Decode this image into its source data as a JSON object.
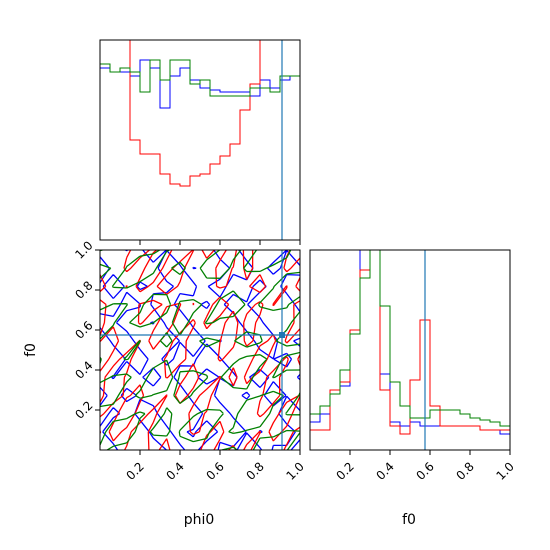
{
  "chart_data": {
    "type": "corner",
    "parameters": [
      "phi0",
      "f0"
    ],
    "axis_range": [
      0,
      1
    ],
    "ticks": [
      "0.2",
      "0.4",
      "0.6",
      "0.8",
      "1.0"
    ],
    "truth": {
      "phi0": 0.91,
      "f0": 0.575,
      "color": "#1f77b4"
    },
    "series": [
      {
        "color": "#0000ff"
      },
      {
        "color": "#ff0000"
      },
      {
        "color": "#008000"
      }
    ],
    "hist_phi0": {
      "bins": [
        0.0,
        0.05,
        0.1,
        0.15,
        0.2,
        0.25,
        0.3,
        0.35,
        0.4,
        0.45,
        0.5,
        0.55,
        0.6,
        0.65,
        0.7,
        0.75,
        0.8,
        0.85,
        0.9,
        0.95,
        1.0
      ],
      "blue": [
        0.86,
        0.84,
        0.84,
        0.82,
        0.9,
        0.86,
        0.66,
        0.82,
        0.86,
        0.8,
        0.76,
        0.75,
        0.74,
        0.74,
        0.74,
        0.72,
        0.8,
        0.76,
        0.8,
        0.82
      ],
      "red": [
        1.05,
        1.05,
        1.05,
        0.5,
        0.43,
        0.43,
        0.33,
        0.28,
        0.27,
        0.32,
        0.33,
        0.38,
        0.42,
        0.48,
        0.65,
        0.78,
        1.05,
        1.05,
        1.05,
        1.05
      ],
      "green": [
        0.88,
        0.84,
        0.86,
        0.84,
        0.74,
        0.9,
        0.8,
        0.9,
        0.9,
        0.78,
        0.8,
        0.72,
        0.72,
        0.72,
        0.72,
        0.76,
        0.76,
        0.74,
        0.82,
        0.82
      ]
    },
    "hist_f0": {
      "bins": [
        0.0,
        0.05,
        0.1,
        0.15,
        0.2,
        0.25,
        0.3,
        0.35,
        0.4,
        0.45,
        0.5,
        0.55,
        0.6,
        0.65,
        0.7,
        0.75,
        0.8,
        0.85,
        0.9,
        0.95,
        1.0
      ],
      "blue": [
        0.14,
        0.18,
        0.28,
        0.32,
        0.58,
        1.05,
        1.05,
        0.38,
        0.14,
        0.12,
        0.14,
        0.12,
        0.12,
        0.12,
        0.12,
        0.12,
        0.12,
        0.1,
        0.1,
        0.08
      ],
      "red": [
        0.1,
        0.1,
        0.3,
        0.34,
        0.6,
        0.9,
        1.05,
        0.3,
        0.12,
        0.08,
        0.35,
        0.65,
        0.22,
        0.12,
        0.12,
        0.12,
        0.12,
        0.1,
        0.1,
        0.1
      ],
      "green": [
        0.18,
        0.22,
        0.28,
        0.4,
        0.58,
        0.86,
        1.05,
        0.72,
        0.34,
        0.22,
        0.16,
        0.16,
        0.2,
        0.2,
        0.2,
        0.18,
        0.16,
        0.15,
        0.14,
        0.12
      ]
    },
    "contour_grid": {
      "blue": [
        [
          0.0,
          0.2,
          0.4,
          0.6,
          0.8,
          0.9,
          0.7,
          0.5,
          0.3,
          0.1,
          0.0,
          0.2,
          0.4,
          0.6,
          0.8,
          1.0
        ],
        [
          0.1,
          0.3,
          0.5,
          0.7,
          0.9,
          0.8,
          0.6,
          0.4,
          0.2,
          0.0,
          0.1,
          0.3,
          0.5,
          0.7,
          0.9,
          0.9
        ],
        [
          0.2,
          0.4,
          0.6,
          0.8,
          1.0,
          0.7,
          0.5,
          0.3,
          0.1,
          0.1,
          0.2,
          0.4,
          0.6,
          0.8,
          1.0,
          0.8
        ],
        [
          0.3,
          0.5,
          0.7,
          0.9,
          0.9,
          0.6,
          0.4,
          0.2,
          0.0,
          0.2,
          0.3,
          0.5,
          0.7,
          0.9,
          0.9,
          0.7
        ],
        [
          0.4,
          0.6,
          0.8,
          1.0,
          0.8,
          0.5,
          0.3,
          0.1,
          0.1,
          0.3,
          0.4,
          0.6,
          0.8,
          1.0,
          0.8,
          0.6
        ],
        [
          0.5,
          0.7,
          0.9,
          0.9,
          0.7,
          0.4,
          0.2,
          0.0,
          0.2,
          0.4,
          0.5,
          0.7,
          0.9,
          0.9,
          0.7,
          0.5
        ],
        [
          0.6,
          0.8,
          1.0,
          0.8,
          0.6,
          0.3,
          0.1,
          0.1,
          0.3,
          0.5,
          0.6,
          0.8,
          1.0,
          0.8,
          0.6,
          0.4
        ],
        [
          0.7,
          0.9,
          0.9,
          0.7,
          0.5,
          0.2,
          0.0,
          0.2,
          0.4,
          0.6,
          0.7,
          0.9,
          0.9,
          0.7,
          0.5,
          0.3
        ],
        [
          0.8,
          1.0,
          0.8,
          0.6,
          0.4,
          0.1,
          0.1,
          0.3,
          0.5,
          0.7,
          0.8,
          1.0,
          0.8,
          0.6,
          0.4,
          0.2
        ],
        [
          0.9,
          0.9,
          0.7,
          0.5,
          0.3,
          0.0,
          0.2,
          0.4,
          0.6,
          0.8,
          0.9,
          0.9,
          0.7,
          0.5,
          0.3,
          0.1
        ],
        [
          1.0,
          0.8,
          0.6,
          0.4,
          0.2,
          0.1,
          0.3,
          0.5,
          0.7,
          0.9,
          1.0,
          0.8,
          0.6,
          0.4,
          0.2,
          0.0
        ],
        [
          0.9,
          0.7,
          0.5,
          0.3,
          0.1,
          0.2,
          0.4,
          0.6,
          0.8,
          1.0,
          0.9,
          0.7,
          0.5,
          0.3,
          0.1,
          0.1
        ]
      ]
    },
    "contour_levels": [
      0.35,
      0.7
    ]
  }
}
